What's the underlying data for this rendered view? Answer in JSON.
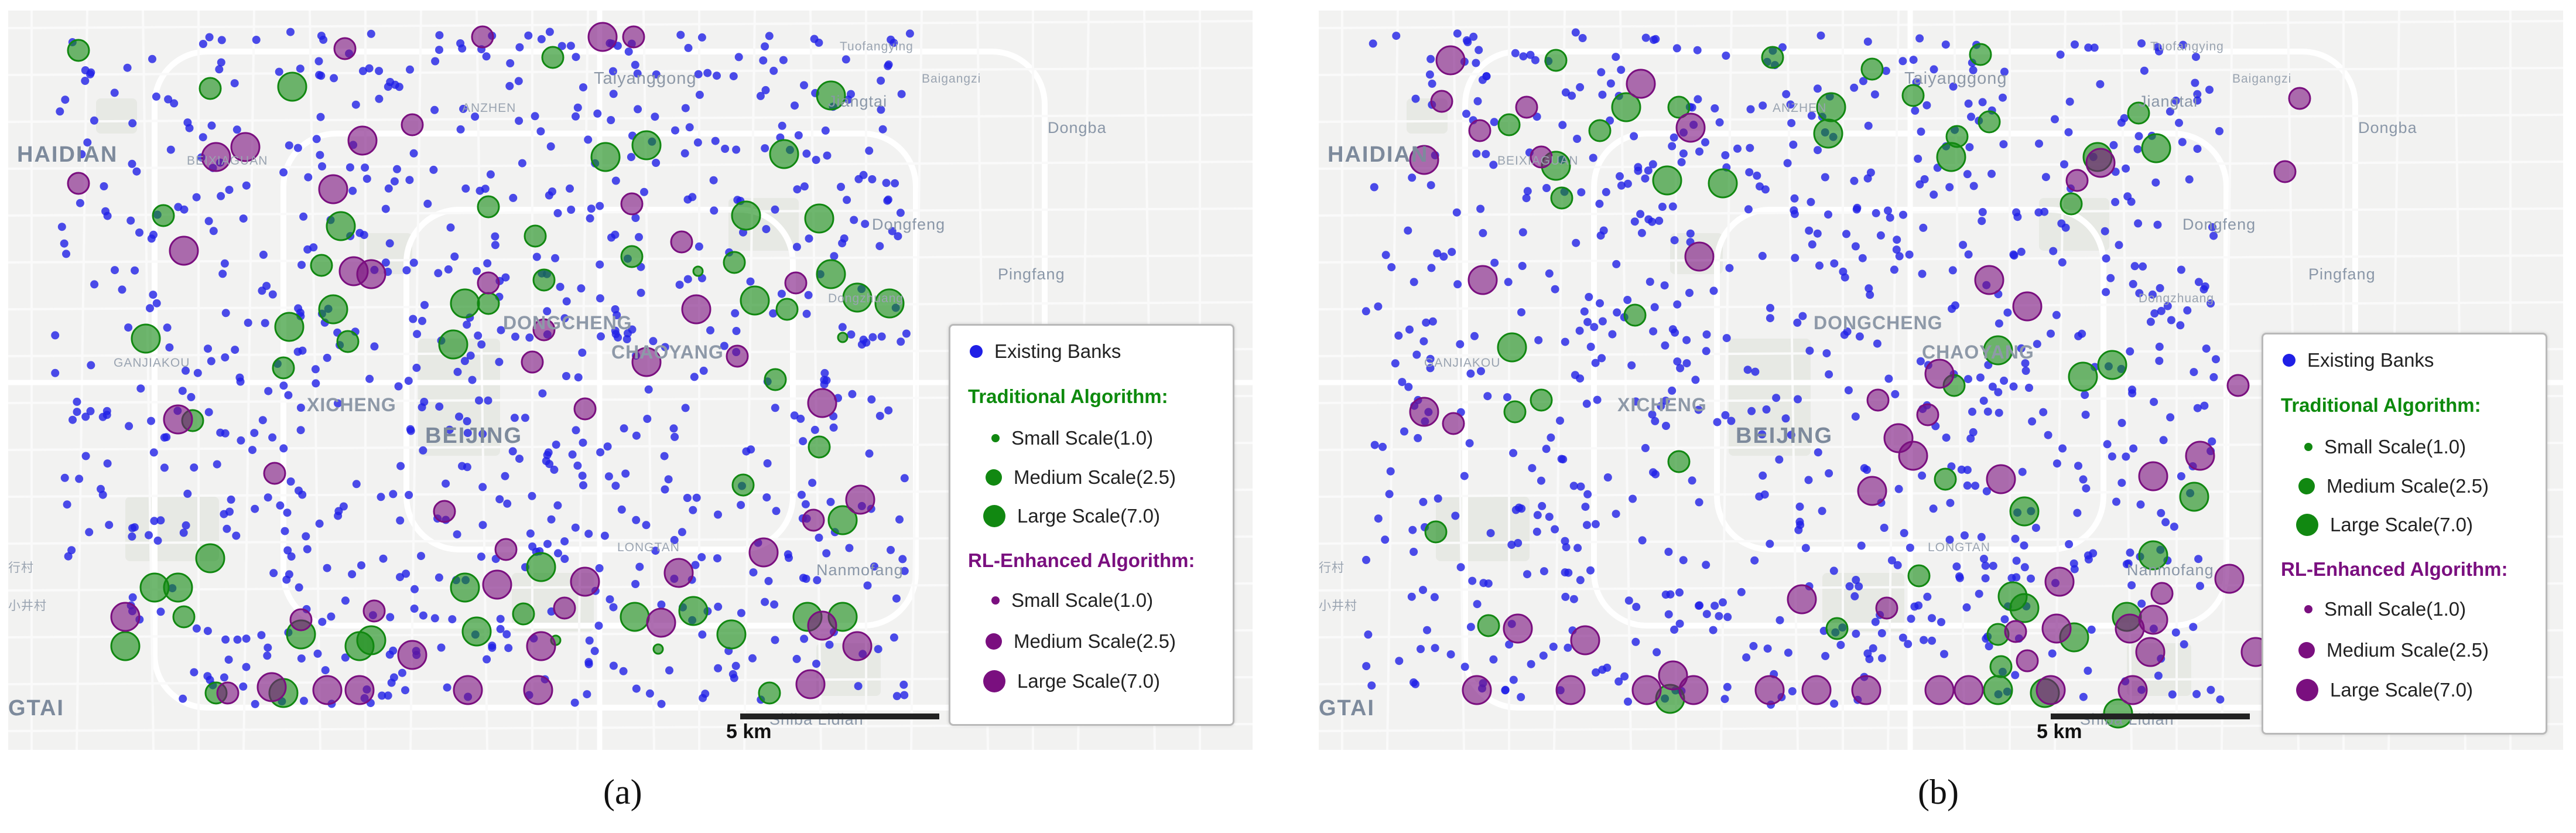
{
  "captions": [
    "(a)",
    "(b)"
  ],
  "scale_label": "5 km",
  "places": {
    "haidian": "HAIDIAN",
    "taiyanggong": "Taiyanggong",
    "tuofangying": "Tuofangying",
    "baigangzi": "Baigangzi",
    "jiangtai": "Jiangtai",
    "dongba": "Dongba",
    "anzhen": "ANZHEN",
    "beixiaguan": "BEIXIAGUAN",
    "dongfeng": "Dongfeng",
    "pingfang": "Pingfang",
    "dongzhuang": "Dongzhuang",
    "dongcheng": "DONGCHENG",
    "chaoyang": "CHAOYANG",
    "ganjiakou": "GANJIAKOU",
    "xicheng": "XICHENG",
    "beijing": "BEIJING",
    "longtan": "LONGTAN",
    "nanmofang": "Nanmofang",
    "shiba_lidian": "Shiba Lidian",
    "tai": "GTAI",
    "xiaojing": "小井村",
    "cun": "行村"
  },
  "colors": {
    "bank": "#1f1fe6",
    "traditional": "#118811",
    "rl": "#7a0f7f",
    "traditional_header": "#0d8a0d",
    "rl_header": "#7a0f7f"
  },
  "legend": {
    "existing": "Existing Banks",
    "traditional_header": "Traditional Algorithm:",
    "rl_header": "RL-Enhanced Algorithm:",
    "small": "Small Scale(1.0)",
    "medium": "Medium Scale(2.5)",
    "large": "Large Scale(7.0)"
  },
  "map_data": {
    "panels": [
      {
        "id": "a",
        "seed": 12345,
        "traditional": [
          [
            "m",
            120,
            68
          ],
          [
            "m",
            345,
            133
          ],
          [
            "l",
            485,
            130
          ],
          [
            "m",
            930,
            80
          ],
          [
            "l",
            1405,
            145
          ],
          [
            "l",
            1090,
            230
          ],
          [
            "m",
            265,
            350
          ],
          [
            "l",
            1325,
            245
          ],
          [
            "m",
            820,
            335
          ],
          [
            "l",
            1020,
            250
          ],
          [
            "m",
            900,
            385
          ],
          [
            "l",
            568,
            368
          ],
          [
            "m",
            1065,
            420
          ],
          [
            "m",
            1240,
            430
          ],
          [
            "l",
            1405,
            450
          ],
          [
            "m",
            1330,
            510
          ],
          [
            "l",
            1450,
            490
          ],
          [
            "l",
            1275,
            495
          ],
          [
            "l",
            1260,
            350
          ],
          [
            "s",
            1178,
            445
          ],
          [
            "l",
            780,
            500
          ],
          [
            "m",
            915,
            460
          ],
          [
            "m",
            820,
            500
          ],
          [
            "l",
            1385,
            355
          ],
          [
            "m",
            580,
            565
          ],
          [
            "l",
            235,
            560
          ],
          [
            "m",
            535,
            435
          ],
          [
            "l",
            760,
            570
          ],
          [
            "l",
            480,
            540
          ],
          [
            "m",
            1310,
            630
          ],
          [
            "l",
            1505,
            500
          ],
          [
            "s",
            1425,
            558
          ],
          [
            "m",
            1385,
            745
          ],
          [
            "l",
            555,
            510
          ],
          [
            "m",
            470,
            610
          ],
          [
            "m",
            315,
            700
          ],
          [
            "l",
            1425,
            870
          ],
          [
            "m",
            1255,
            810
          ],
          [
            "l",
            250,
            985
          ],
          [
            "l",
            290,
            985
          ],
          [
            "l",
            780,
            985
          ],
          [
            "l",
            345,
            935
          ],
          [
            "l",
            910,
            950
          ],
          [
            "l",
            1170,
            1025
          ],
          [
            "l",
            1425,
            1035
          ],
          [
            "l",
            200,
            1085
          ],
          [
            "l",
            1365,
            1035
          ],
          [
            "l",
            500,
            1065
          ],
          [
            "l",
            620,
            1075
          ],
          [
            "l",
            1070,
            1035
          ],
          [
            "l",
            1235,
            1065
          ],
          [
            "m",
            300,
            1035
          ],
          [
            "m",
            880,
            1030
          ],
          [
            "s",
            935,
            1075
          ],
          [
            "s",
            1110,
            1090
          ],
          [
            "m",
            1300,
            1165
          ],
          [
            "m",
            355,
            1165
          ],
          [
            "l",
            470,
            1165
          ],
          [
            "l",
            600,
            1085
          ],
          [
            "l",
            800,
            1060
          ]
        ],
        "rl": [
          [
            "l",
            1015,
            45
          ],
          [
            "m",
            1068,
            45
          ],
          [
            "m",
            810,
            45
          ],
          [
            "m",
            575,
            65
          ],
          [
            "m",
            120,
            295
          ],
          [
            "m",
            690,
            195
          ],
          [
            "l",
            355,
            250
          ],
          [
            "l",
            405,
            233
          ],
          [
            "l",
            605,
            222
          ],
          [
            "l",
            555,
            305
          ],
          [
            "m",
            1150,
            395
          ],
          [
            "m",
            1065,
            330
          ],
          [
            "l",
            620,
            450
          ],
          [
            "l",
            590,
            445
          ],
          [
            "m",
            820,
            465
          ],
          [
            "m",
            915,
            545
          ],
          [
            "m",
            895,
            600
          ],
          [
            "l",
            290,
            698
          ],
          [
            "l",
            1090,
            600
          ],
          [
            "l",
            300,
            410
          ],
          [
            "m",
            1245,
            590
          ],
          [
            "l",
            1175,
            510
          ],
          [
            "m",
            985,
            680
          ],
          [
            "m",
            1345,
            465
          ],
          [
            "l",
            1390,
            670
          ],
          [
            "l",
            1455,
            835
          ],
          [
            "m",
            1375,
            870
          ],
          [
            "m",
            455,
            790
          ],
          [
            "m",
            745,
            855
          ],
          [
            "l",
            835,
            980
          ],
          [
            "m",
            850,
            920
          ],
          [
            "l",
            1145,
            960
          ],
          [
            "l",
            1290,
            925
          ],
          [
            "l",
            985,
            975
          ],
          [
            "l",
            1115,
            1045
          ],
          [
            "m",
            950,
            1020
          ],
          [
            "l",
            1390,
            1050
          ],
          [
            "l",
            200,
            1035
          ],
          [
            "l",
            450,
            1155
          ],
          [
            "l",
            545,
            1160
          ],
          [
            "l",
            600,
            1160
          ],
          [
            "l",
            785,
            1160
          ],
          [
            "l",
            905,
            1160
          ],
          [
            "l",
            1370,
            1150
          ],
          [
            "l",
            1450,
            1085
          ],
          [
            "l",
            910,
            1085
          ],
          [
            "m",
            375,
            1165
          ],
          [
            "m",
            625,
            1025
          ],
          [
            "m",
            500,
            1040
          ],
          [
            "l",
            690,
            1100
          ]
        ]
      },
      {
        "id": "b",
        "seed": 67890,
        "traditional": [
          [
            "m",
            405,
            85
          ],
          [
            "m",
            775,
            80
          ],
          [
            "m",
            1130,
            75
          ],
          [
            "m",
            615,
            165
          ],
          [
            "l",
            525,
            165
          ],
          [
            "m",
            325,
            195
          ],
          [
            "m",
            480,
            205
          ],
          [
            "l",
            405,
            265
          ],
          [
            "l",
            595,
            290
          ],
          [
            "l",
            690,
            295
          ],
          [
            "m",
            945,
            100
          ],
          [
            "m",
            1015,
            145
          ],
          [
            "l",
            875,
            165
          ],
          [
            "l",
            870,
            210
          ],
          [
            "m",
            1400,
            175
          ],
          [
            "m",
            1145,
            190
          ],
          [
            "l",
            1430,
            235
          ],
          [
            "m",
            1090,
            215
          ],
          [
            "m",
            415,
            320
          ],
          [
            "l",
            1080,
            250
          ],
          [
            "l",
            1330,
            250
          ],
          [
            "m",
            1285,
            330
          ],
          [
            "l",
            330,
            575
          ],
          [
            "l",
            1160,
            580
          ],
          [
            "m",
            1085,
            640
          ],
          [
            "l",
            1355,
            605
          ],
          [
            "l",
            1305,
            625
          ],
          [
            "m",
            615,
            770
          ],
          [
            "m",
            380,
            665
          ],
          [
            "m",
            1070,
            800
          ],
          [
            "l",
            1205,
            855
          ],
          [
            "l",
            1495,
            830
          ],
          [
            "m",
            1025,
            965
          ],
          [
            "m",
            885,
            1055
          ],
          [
            "m",
            290,
            1050
          ],
          [
            "m",
            1160,
            1065
          ],
          [
            "l",
            1425,
            930
          ],
          [
            "l",
            1205,
            1020
          ],
          [
            "l",
            1380,
            1035
          ],
          [
            "m",
            200,
            890
          ],
          [
            "m",
            1165,
            1120
          ],
          [
            "l",
            1240,
            1165
          ],
          [
            "l",
            1160,
            1160
          ],
          [
            "l",
            1290,
            1070
          ],
          [
            "l",
            1185,
            1000
          ],
          [
            "m",
            540,
            520
          ],
          [
            "m",
            335,
            685
          ],
          [
            "l",
            1365,
            1200
          ],
          [
            "l",
            600,
            1175
          ]
        ],
        "rl": [
          [
            "l",
            225,
            85
          ],
          [
            "m",
            210,
            155
          ],
          [
            "m",
            275,
            205
          ],
          [
            "l",
            180,
            255
          ],
          [
            "m",
            380,
            250
          ],
          [
            "m",
            355,
            165
          ],
          [
            "l",
            550,
            125
          ],
          [
            "l",
            635,
            200
          ],
          [
            "l",
            1335,
            260
          ],
          [
            "m",
            1650,
            275
          ],
          [
            "m",
            1295,
            290
          ],
          [
            "m",
            1675,
            150
          ],
          [
            "l",
            650,
            420
          ],
          [
            "l",
            280,
            460
          ],
          [
            "l",
            1145,
            460
          ],
          [
            "l",
            1210,
            505
          ],
          [
            "l",
            1060,
            620
          ],
          [
            "m",
            1040,
            690
          ],
          [
            "m",
            955,
            665
          ],
          [
            "l",
            180,
            685
          ],
          [
            "m",
            230,
            705
          ],
          [
            "l",
            945,
            820
          ],
          [
            "l",
            1425,
            795
          ],
          [
            "m",
            1190,
            1060
          ],
          [
            "l",
            1260,
            1055
          ],
          [
            "l",
            1385,
            1055
          ],
          [
            "m",
            1440,
            995
          ],
          [
            "l",
            1555,
            970
          ],
          [
            "m",
            1570,
            640
          ],
          [
            "l",
            1505,
            760
          ],
          [
            "l",
            990,
            730
          ],
          [
            "l",
            825,
            1005
          ],
          [
            "l",
            1165,
            800
          ],
          [
            "l",
            1015,
            760
          ],
          [
            "l",
            1265,
            975
          ],
          [
            "l",
            340,
            1055
          ],
          [
            "l",
            455,
            1075
          ],
          [
            "l",
            605,
            1135
          ],
          [
            "m",
            970,
            1020
          ],
          [
            "l",
            1425,
            1040
          ],
          [
            "l",
            1600,
            1095
          ],
          [
            "l",
            1420,
            1095
          ],
          [
            "l",
            270,
            1160
          ],
          [
            "l",
            430,
            1160
          ],
          [
            "l",
            560,
            1160
          ],
          [
            "l",
            640,
            1160
          ],
          [
            "l",
            770,
            1160
          ],
          [
            "l",
            850,
            1160
          ],
          [
            "l",
            935,
            1160
          ],
          [
            "l",
            1060,
            1160
          ],
          [
            "l",
            1110,
            1160
          ],
          [
            "l",
            1250,
            1160
          ],
          [
            "l",
            1390,
            1160
          ],
          [
            "m",
            1210,
            1110
          ]
        ]
      }
    ]
  }
}
